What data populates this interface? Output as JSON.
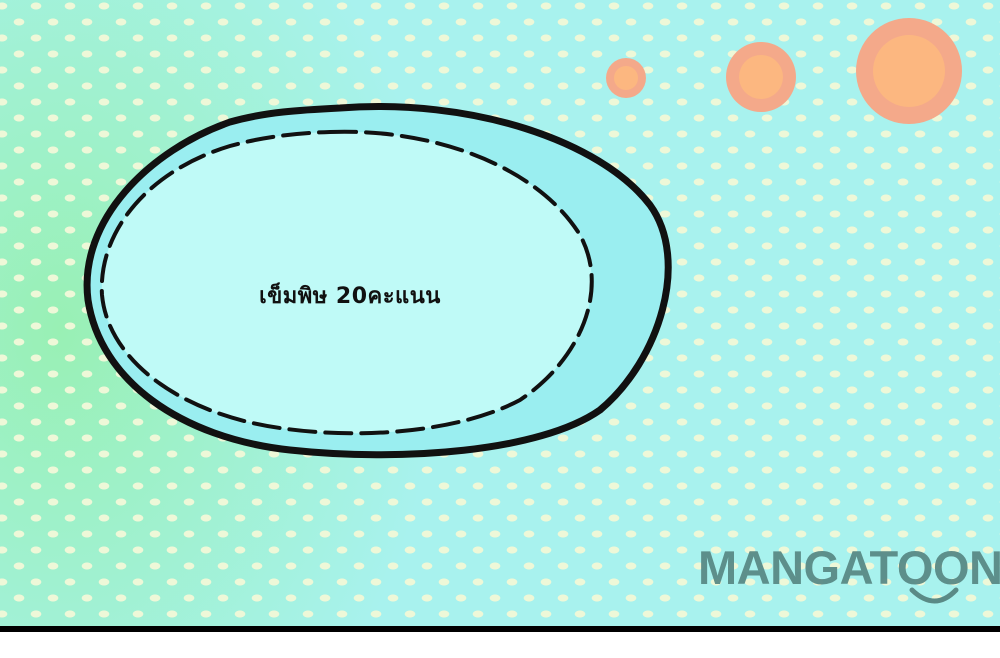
{
  "bubble": {
    "text": "เข็มพิษ 20คะแนน"
  },
  "watermark": {
    "text": "MANGATOON",
    "icon": "smile-icon"
  },
  "colors": {
    "background": "#a8f2ee",
    "gradient_green": "#96f0aa",
    "dot": "#eef8d8",
    "bubble_fill": "#bffaf7",
    "bubble_shadow": "#9aeef0",
    "outline": "#111111",
    "orange_outer": "#f4a98a",
    "orange_inner": "#fcb780",
    "watermark": "#5a8a86"
  }
}
